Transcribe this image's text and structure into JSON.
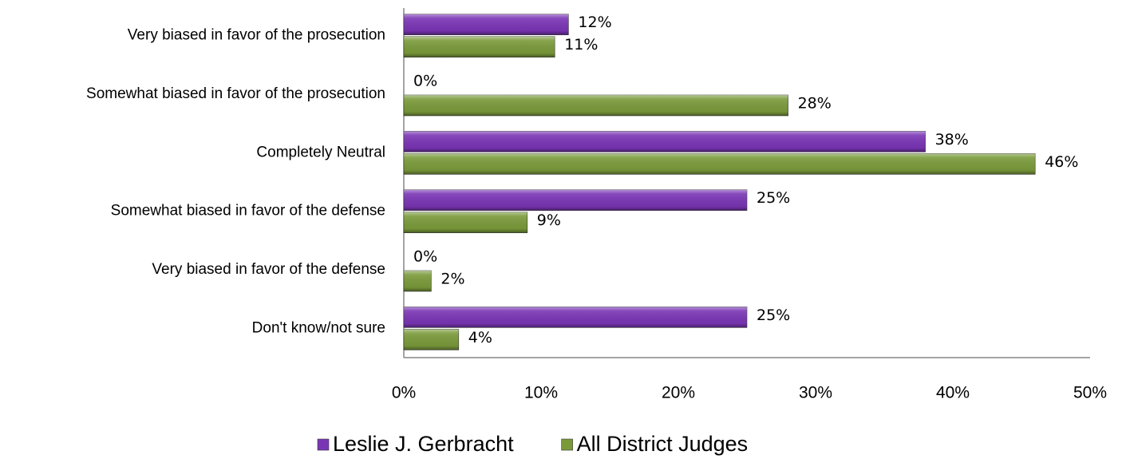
{
  "chart_data": {
    "type": "bar",
    "orientation": "horizontal",
    "categories": [
      "Very biased in favor of the prosecution",
      "Somewhat biased in favor of the prosecution",
      "Completely Neutral",
      "Somewhat biased in favor of the defense",
      "Very biased in favor of the defense",
      "Don't know/not sure"
    ],
    "series": [
      {
        "name": "Leslie J. Gerbracht",
        "color": "#7a35b5",
        "values": [
          12,
          0,
          38,
          25,
          0,
          25
        ],
        "value_labels": [
          "12%",
          "0%",
          "38%",
          "25%",
          "0%",
          "25%"
        ]
      },
      {
        "name": "All District Judges",
        "color": "#7a9a3a",
        "values": [
          11,
          28,
          46,
          9,
          2,
          4
        ],
        "value_labels": [
          "11%",
          "28%",
          "46%",
          "9%",
          "2%",
          "4%"
        ]
      }
    ],
    "xlim": [
      0,
      50
    ],
    "xticks": [
      {
        "value": 0,
        "label": "0%"
      },
      {
        "value": 10,
        "label": "10%"
      },
      {
        "value": 20,
        "label": "20%"
      },
      {
        "value": 30,
        "label": "30%"
      },
      {
        "value": 40,
        "label": "40%"
      },
      {
        "value": 50,
        "label": "50%"
      }
    ],
    "grid": false,
    "legend": "bottom"
  }
}
